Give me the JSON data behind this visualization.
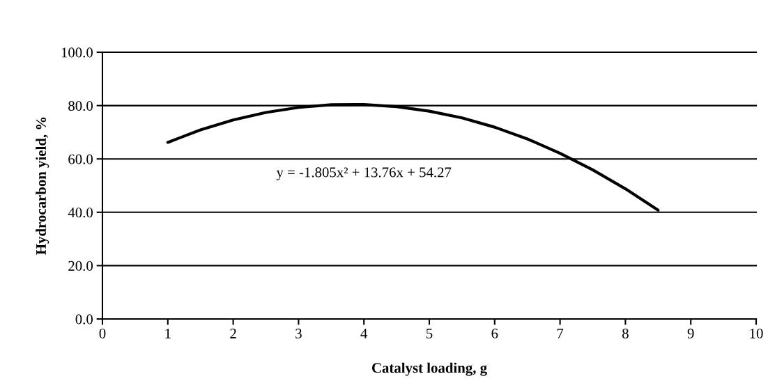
{
  "chart_data": {
    "type": "line",
    "xlabel": "Catalyst loading, g",
    "ylabel": "Hydrocarbon yield, %",
    "x": [
      1,
      1.5,
      2,
      2.5,
      3,
      3.5,
      4,
      4.5,
      5,
      5.5,
      6,
      6.5,
      7,
      7.5,
      8,
      8.5
    ],
    "series": [
      {
        "color": "#000000",
        "values": [
          66.2,
          70.9,
          74.6,
          77.4,
          79.3,
          80.3,
          80.4,
          79.6,
          77.9,
          75.4,
          71.9,
          67.5,
          62.1,
          55.9,
          48.8,
          40.8
        ]
      }
    ],
    "annotations": [
      "y = -1.805x² + 13.76x + 54.27"
    ],
    "xlim": [
      0,
      10
    ],
    "xticks": [
      0,
      1,
      2,
      3,
      4,
      5,
      6,
      7,
      8,
      9,
      10
    ],
    "ylim": [
      0,
      100
    ],
    "yticks": [
      {
        "value": 0,
        "label": "0.0"
      },
      {
        "value": 20,
        "label": "20.0"
      },
      {
        "value": 40,
        "label": "40.0"
      },
      {
        "value": 60,
        "label": "60.0"
      },
      {
        "value": 80,
        "label": "80.0"
      },
      {
        "value": 100,
        "label": "100.0"
      }
    ],
    "grid": "y",
    "marker": "none",
    "line_style": "solid"
  }
}
